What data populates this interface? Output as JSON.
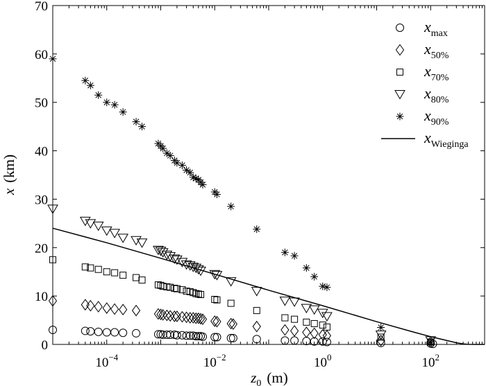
{
  "chart_data": {
    "type": "scatter",
    "title": "",
    "x_scale": "log",
    "xlim": [
      1e-05,
      1000
    ],
    "ylim": [
      0,
      70
    ],
    "xlabel": {
      "main": "z",
      "sub": "0",
      "unit": "(m)"
    },
    "ylabel": {
      "main": "x",
      "unit": "(km)"
    },
    "x_ticks": [
      {
        "value": 0.0001,
        "base": "10",
        "exp": "−4"
      },
      {
        "value": 0.01,
        "base": "10",
        "exp": "−2"
      },
      {
        "value": 1,
        "base": "10",
        "exp": "0"
      },
      {
        "value": 100,
        "base": "10",
        "exp": "2"
      }
    ],
    "y_ticks": [
      0,
      10,
      20,
      30,
      40,
      50,
      60,
      70
    ],
    "grid": false,
    "legend_position": "top-right",
    "series": [
      {
        "name": "x_max",
        "label_main": "x",
        "label_sub": "max",
        "marker": "circle",
        "x": [
          1e-05,
          4e-05,
          5e-05,
          7e-05,
          0.0001,
          0.00014,
          0.0002,
          0.00035,
          0.0009,
          0.001,
          0.0011,
          0.0013,
          0.0015,
          0.0018,
          0.002,
          0.0025,
          0.003,
          0.0035,
          0.004,
          0.0045,
          0.005,
          0.0055,
          0.006,
          0.01,
          0.011,
          0.02,
          0.022,
          0.06,
          0.2,
          0.3,
          0.5,
          0.7,
          1.0,
          1.2,
          12,
          100,
          110
        ],
        "y": [
          3.0,
          2.8,
          2.7,
          2.6,
          2.5,
          2.5,
          2.4,
          2.3,
          2.1,
          2.1,
          2.0,
          2.0,
          2.0,
          2.0,
          1.9,
          1.9,
          1.8,
          1.8,
          1.8,
          1.7,
          1.7,
          1.7,
          1.6,
          1.5,
          1.5,
          1.3,
          1.3,
          1.1,
          0.8,
          0.8,
          0.7,
          0.6,
          0.6,
          0.5,
          0.3,
          0.2,
          0.1
        ]
      },
      {
        "name": "x_50%",
        "label_main": "x",
        "label_sub": "50%",
        "marker": "diamond",
        "x": [
          1e-05,
          4e-05,
          5e-05,
          7e-05,
          0.0001,
          0.00014,
          0.0002,
          0.00035,
          0.0009,
          0.001,
          0.0011,
          0.0013,
          0.0015,
          0.0018,
          0.002,
          0.0025,
          0.003,
          0.0035,
          0.004,
          0.0045,
          0.005,
          0.0055,
          0.006,
          0.01,
          0.011,
          0.02,
          0.022,
          0.06,
          0.2,
          0.3,
          0.5,
          0.7,
          1.0,
          1.2,
          12,
          100
        ],
        "y": [
          9.0,
          8.2,
          8.0,
          7.8,
          7.5,
          7.3,
          7.2,
          7.0,
          6.3,
          6.2,
          6.1,
          6.0,
          5.9,
          5.8,
          5.8,
          5.7,
          5.6,
          5.5,
          5.5,
          5.4,
          5.4,
          5.3,
          5.2,
          4.8,
          4.7,
          4.3,
          4.2,
          3.7,
          3.0,
          2.8,
          2.5,
          2.3,
          2.0,
          1.8,
          0.8,
          0.5
        ]
      },
      {
        "name": "x_70%",
        "label_main": "x",
        "label_sub": "70%",
        "marker": "square",
        "x": [
          1e-05,
          4e-05,
          5e-05,
          7e-05,
          0.0001,
          0.00014,
          0.0002,
          0.00035,
          0.00045,
          0.0009,
          0.001,
          0.0011,
          0.0013,
          0.0015,
          0.0018,
          0.002,
          0.0025,
          0.003,
          0.0035,
          0.004,
          0.0045,
          0.005,
          0.0055,
          0.01,
          0.011,
          0.02,
          0.06,
          0.2,
          0.3,
          0.5,
          0.7,
          1.0,
          1.2,
          12,
          100
        ],
        "y": [
          17.5,
          16.0,
          15.8,
          15.5,
          15.0,
          14.8,
          14.3,
          13.8,
          13.3,
          12.3,
          12.2,
          12.0,
          11.9,
          11.8,
          11.6,
          11.5,
          11.3,
          11.0,
          10.9,
          10.7,
          10.5,
          10.4,
          10.3,
          9.3,
          9.2,
          8.5,
          7.0,
          5.5,
          5.2,
          4.6,
          4.3,
          4.0,
          3.6,
          1.5,
          0.5
        ]
      },
      {
        "name": "x_80%",
        "label_main": "x",
        "label_sub": "80%",
        "marker": "triangle-down",
        "x": [
          1e-05,
          4e-05,
          5e-05,
          7e-05,
          0.0001,
          0.00014,
          0.0002,
          0.00035,
          0.00045,
          0.0009,
          0.001,
          0.0011,
          0.0013,
          0.0015,
          0.0018,
          0.002,
          0.0025,
          0.003,
          0.0035,
          0.004,
          0.0045,
          0.005,
          0.0055,
          0.01,
          0.011,
          0.02,
          0.06,
          0.2,
          0.3,
          0.5,
          0.7,
          1.0,
          1.2,
          12,
          100
        ],
        "y": [
          28.0,
          25.5,
          25.0,
          24.5,
          23.5,
          23.0,
          22.0,
          21.5,
          21.0,
          19.5,
          19.3,
          19.0,
          18.5,
          18.2,
          17.7,
          17.5,
          17.0,
          16.5,
          16.3,
          16.0,
          15.8,
          15.5,
          15.2,
          14.5,
          14.3,
          13.0,
          11.0,
          9.0,
          8.8,
          7.5,
          7.2,
          6.5,
          5.8,
          2.0,
          0.8
        ]
      },
      {
        "name": "x_90%",
        "label_main": "x",
        "label_sub": "90%",
        "marker": "asterisk",
        "x": [
          1e-05,
          4e-05,
          5e-05,
          7e-05,
          0.0001,
          0.00014,
          0.0002,
          0.00035,
          0.00045,
          0.0009,
          0.001,
          0.0011,
          0.0013,
          0.0015,
          0.0018,
          0.002,
          0.0025,
          0.003,
          0.0035,
          0.004,
          0.0045,
          0.005,
          0.0055,
          0.006,
          0.01,
          0.011,
          0.02,
          0.06,
          0.2,
          0.3,
          0.5,
          0.7,
          1.0,
          1.2,
          12,
          100
        ],
        "y": [
          59.0,
          54.5,
          53.5,
          51.5,
          50.0,
          49.5,
          48.0,
          46.0,
          45.0,
          41.5,
          41.0,
          40.5,
          39.5,
          39.0,
          38.0,
          37.5,
          37.0,
          36.0,
          35.5,
          34.5,
          34.3,
          34.0,
          33.5,
          33.0,
          31.5,
          31.0,
          28.5,
          23.8,
          19.0,
          18.3,
          15.8,
          14.0,
          12.0,
          11.8,
          3.5,
          0.5
        ]
      },
      {
        "name": "x_Wieginga",
        "label_main": "x",
        "label_sub": "Wieginga",
        "marker": "line",
        "x": [
          1e-05,
          0.0001,
          0.001,
          0.01,
          0.1,
          1,
          10,
          50,
          100,
          200,
          300,
          400,
          500,
          700,
          1000
        ],
        "y": [
          24.0,
          21.0,
          17.8,
          14.5,
          11.2,
          8.0,
          4.7,
          2.5,
          1.6,
          0.8,
          0.35,
          0.12,
          0.02,
          0.0,
          0.0
        ]
      }
    ]
  }
}
